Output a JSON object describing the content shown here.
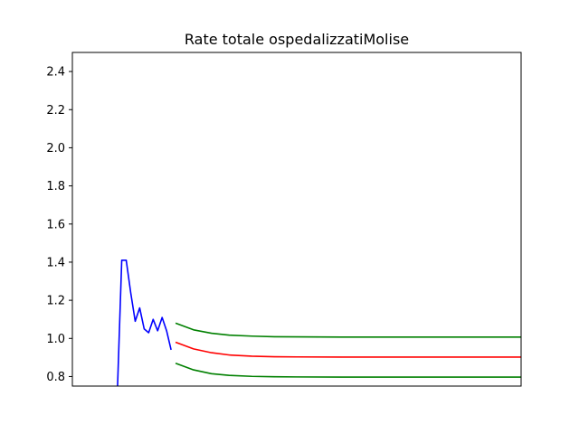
{
  "chart_data": {
    "type": "line",
    "title": "Rate totale ospedalizzatiMolise",
    "xlabel": "",
    "ylabel": "",
    "ylim": [
      0.75,
      2.5
    ],
    "xlim": [
      0,
      100
    ],
    "yticks": [
      0.8,
      1.0,
      1.2,
      1.4,
      1.6,
      1.8,
      2.0,
      2.2,
      2.4
    ],
    "ytick_labels": [
      "0.8",
      "1.0",
      "1.2",
      "1.4",
      "1.6",
      "1.8",
      "2.0",
      "2.2",
      "2.4"
    ],
    "show_xticks": false,
    "grid": false,
    "legend": "none",
    "series": [
      {
        "color": "#0000ff",
        "x": [
          10,
          11,
          12,
          13,
          14,
          15,
          16,
          17,
          18,
          19,
          20,
          21,
          22
        ],
        "y": [
          0.7,
          1.41,
          1.41,
          1.24,
          1.09,
          1.16,
          1.05,
          1.03,
          1.1,
          1.04,
          1.11,
          1.04,
          0.94
        ]
      },
      {
        "color": "#ff0000",
        "x": [
          23,
          27,
          31,
          35,
          40,
          45,
          50,
          60,
          70,
          80,
          90,
          100
        ],
        "y": [
          0.98,
          0.945,
          0.925,
          0.913,
          0.907,
          0.904,
          0.903,
          0.902,
          0.902,
          0.902,
          0.902,
          0.902
        ]
      },
      {
        "color": "#008000",
        "x": [
          23,
          27,
          31,
          35,
          40,
          45,
          50,
          60,
          70,
          80,
          90,
          100
        ],
        "y": [
          1.08,
          1.045,
          1.027,
          1.017,
          1.012,
          1.009,
          1.008,
          1.007,
          1.007,
          1.007,
          1.007,
          1.007
        ]
      },
      {
        "color": "#008000",
        "x": [
          23,
          27,
          31,
          35,
          40,
          45,
          50,
          60,
          70,
          80,
          90,
          100
        ],
        "y": [
          0.87,
          0.835,
          0.815,
          0.806,
          0.801,
          0.799,
          0.798,
          0.797,
          0.797,
          0.797,
          0.797,
          0.797
        ]
      }
    ]
  }
}
